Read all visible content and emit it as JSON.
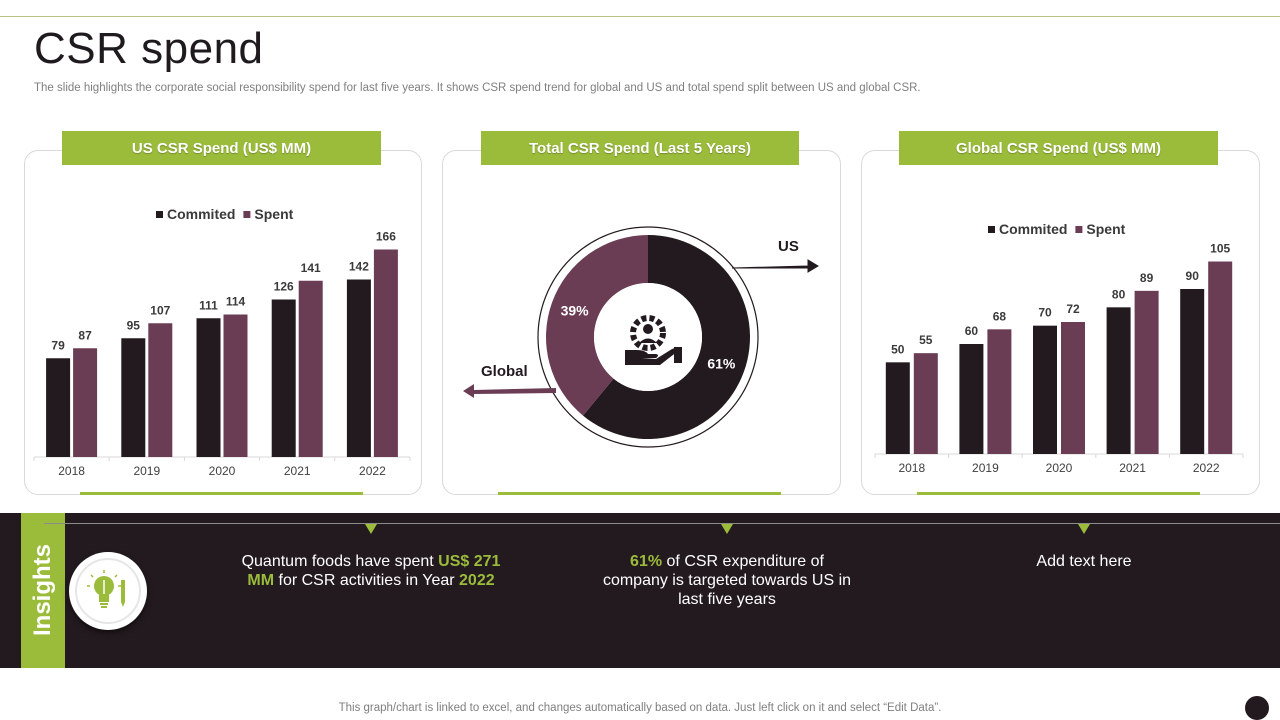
{
  "page": {
    "title": "CSR spend",
    "subtitle": "The slide highlights the corporate social responsibility spend for last five years. It shows CSR spend trend for global and US and total spend split between US and global CSR.",
    "footer": "This graph/chart is linked to excel,  and changes automatically based on data. Just left click on it and select “Edit Data”."
  },
  "colors": {
    "committed": "#231a1f",
    "spent": "#6b3d55",
    "accent": "#9bbb3b",
    "band": "#231a1f"
  },
  "icons": {
    "center": "hand-gear-people-icon",
    "insight": "lightbulb-pencil-icon"
  },
  "chart_data": [
    {
      "type": "bar",
      "title": "US CSR Spend (US$ MM)",
      "categories": [
        "2018",
        "2019",
        "2020",
        "2021",
        "2022"
      ],
      "series": [
        {
          "name": "Commited",
          "values": [
            79,
            95,
            111,
            126,
            142
          ]
        },
        {
          "name": "Spent",
          "values": [
            87,
            107,
            114,
            141,
            166
          ]
        }
      ],
      "ylim": [
        0,
        180
      ],
      "legend": "top-center"
    },
    {
      "type": "pie",
      "title": "Total CSR Spend (Last 5 Years)",
      "slices": [
        {
          "name": "US",
          "label": "61%",
          "value": 61
        },
        {
          "name": "Global",
          "label": "39%",
          "value": 39
        }
      ]
    },
    {
      "type": "bar",
      "title": "Global CSR Spend (US$ MM)",
      "categories": [
        "2018",
        "2019",
        "2020",
        "2021",
        "2022"
      ],
      "series": [
        {
          "name": "Commited",
          "values": [
            50,
            60,
            70,
            80,
            90
          ]
        },
        {
          "name": "Spent",
          "values": [
            55,
            68,
            72,
            89,
            105
          ]
        }
      ],
      "ylim": [
        0,
        120
      ],
      "legend": "top-center"
    }
  ],
  "insights": {
    "label": "Insights",
    "items": [
      {
        "pre": "Quantum  foods have spent ",
        "hl1": "US$ 271 MM",
        "mid": " for CSR activities in Year ",
        "hl2": "2022"
      },
      {
        "hl": "61%",
        "text": " of CSR expenditure  of company is targeted towards US in last five years"
      },
      {
        "text": "Add text here"
      }
    ]
  }
}
